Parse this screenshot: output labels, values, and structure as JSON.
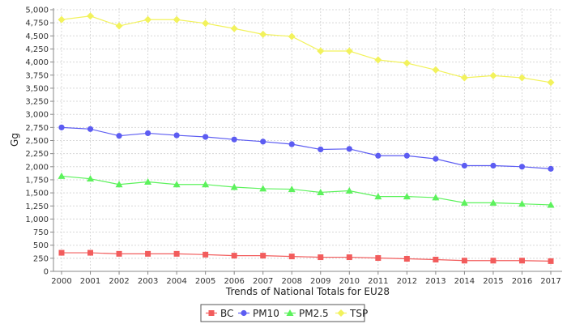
{
  "chart_data": {
    "type": "line",
    "title": "",
    "xlabel": "Trends of National Totals for EU28",
    "ylabel": "Gg",
    "x": [
      "2000",
      "2001",
      "2002",
      "2003",
      "2004",
      "2005",
      "2006",
      "2007",
      "2008",
      "2009",
      "2010",
      "2011",
      "2012",
      "2013",
      "2014",
      "2015",
      "2016",
      "2017"
    ],
    "ylim": [
      0,
      5000
    ],
    "y_ticks": [
      0,
      250,
      500,
      750,
      1000,
      1250,
      1500,
      1750,
      2000,
      2250,
      2500,
      2750,
      3000,
      3250,
      3500,
      3750,
      4000,
      4250,
      4500,
      4750,
      5000
    ],
    "y_tick_labels": [
      "0",
      "250",
      "500",
      "750",
      "1,000",
      "1,250",
      "1,500",
      "1,750",
      "2,000",
      "2,250",
      "2,500",
      "2,750",
      "3,000",
      "3,250",
      "3,500",
      "3,750",
      "4,000",
      "4,250",
      "4,500",
      "4,750",
      "5,000"
    ],
    "grid": true,
    "legend_position": "bottom",
    "series": [
      {
        "name": "BC",
        "color": "#f25c5c",
        "marker": "square",
        "values": [
          355,
          355,
          335,
          335,
          335,
          320,
          300,
          300,
          285,
          270,
          270,
          255,
          240,
          225,
          205,
          205,
          205,
          195
        ]
      },
      {
        "name": "PM10",
        "color": "#5c5cf2",
        "marker": "circle",
        "values": [
          2750,
          2720,
          2590,
          2640,
          2600,
          2570,
          2520,
          2480,
          2430,
          2330,
          2340,
          2210,
          2210,
          2150,
          2020,
          2020,
          2000,
          1960
        ]
      },
      {
        "name": "PM2.5",
        "color": "#5cf25c",
        "marker": "triangle",
        "values": [
          1820,
          1770,
          1660,
          1710,
          1660,
          1660,
          1610,
          1580,
          1570,
          1510,
          1540,
          1430,
          1430,
          1410,
          1310,
          1310,
          1290,
          1270
        ]
      },
      {
        "name": "TSP",
        "color": "#f2f25c",
        "marker": "diamond",
        "values": [
          4810,
          4880,
          4690,
          4810,
          4810,
          4740,
          4640,
          4530,
          4490,
          4210,
          4210,
          4040,
          3980,
          3850,
          3700,
          3740,
          3700,
          3610
        ]
      }
    ]
  }
}
